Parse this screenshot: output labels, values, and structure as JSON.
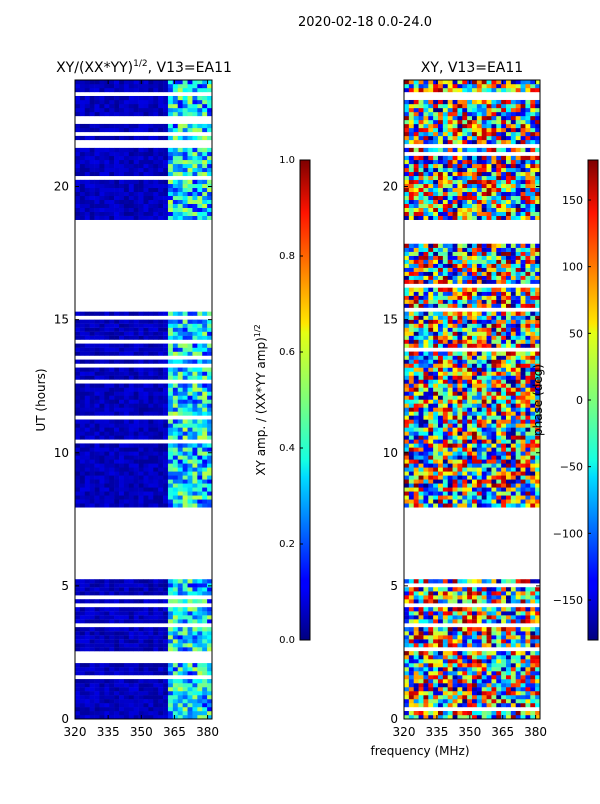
{
  "figure": {
    "suptitle": "2020-02-18 0.0-24.0",
    "xlabel": "frequency (MHz)",
    "ylabel": "UT (hours)"
  },
  "chart_data": [
    {
      "type": "heatmap",
      "title_main": "XY/(XX*YY)",
      "title_sup": "1/2",
      "title_tail": ", V13=EA11",
      "xlim": [
        320,
        382
      ],
      "ylim": [
        0,
        24
      ],
      "xticks": [
        320,
        335,
        350,
        365,
        380
      ],
      "yticks": [
        0,
        5,
        10,
        15,
        20
      ],
      "gap_hours": [
        [
          2.3,
          2.5
        ],
        [
          5.3,
          7.9
        ],
        [
          10.4,
          10.5
        ],
        [
          12.6,
          12.7
        ],
        [
          15.5,
          18.8
        ],
        [
          21.4,
          21.8
        ],
        [
          22.4,
          22.6
        ]
      ],
      "colorbar": {
        "label_main": "XY amp. / (XX*YY amp)",
        "label_sup": "1/2",
        "range": [
          0.0,
          1.0
        ],
        "ticks": [
          "0.0",
          "0.2",
          "0.4",
          "0.6",
          "0.8",
          "1.0"
        ]
      }
    },
    {
      "type": "heatmap",
      "title": "XY, V13=EA11",
      "xlim": [
        320,
        382
      ],
      "ylim": [
        0,
        24
      ],
      "xticks": [
        320,
        335,
        350,
        365,
        380
      ],
      "yticks": [
        0,
        5,
        10,
        15,
        20
      ],
      "gap_hours": [
        [
          5.3,
          7.9
        ],
        [
          17.8,
          18.8
        ]
      ],
      "colorbar": {
        "label": "phase (deg)",
        "range": [
          -180,
          180
        ],
        "ticks": [
          "150",
          "100",
          "50",
          "0",
          "−50",
          "−100",
          "−150"
        ]
      }
    }
  ]
}
